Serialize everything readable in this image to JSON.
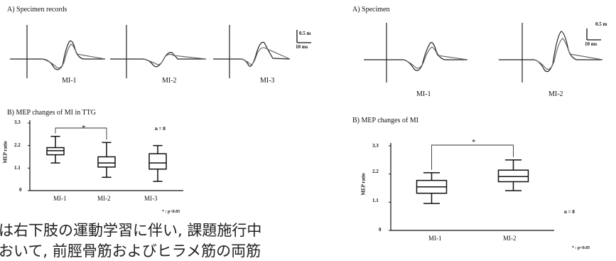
{
  "left_panel": {
    "title_a": "A) Specimen records",
    "title_b": "B) MEP changes of MI in TTG",
    "scale_amp": "0.5 m",
    "scale_time": "10 ms",
    "trace_labels": [
      "MI-1",
      "MI-2",
      "MI-3"
    ],
    "star": "*",
    "n_label": "n = 8",
    "p_label": "* : p<0.05"
  },
  "right_panel": {
    "title_a": "A) Specimen",
    "title_b": "B) MEP changes of MI",
    "scale_amp": "0.5 m",
    "scale_time": "10 ms",
    "trace_labels": [
      "MI-1",
      "MI-2"
    ],
    "star": "*",
    "n_label": "n = 8",
    "p_label": "* : p<0.05"
  },
  "japanese_text": {
    "line1": "は右下肢の運動学習に伴い, 課題施行中",
    "line2": "おいて, 前脛骨筋およびヒラメ筋の両筋"
  },
  "chart_data": [
    {
      "type": "box",
      "title": "MEP changes of MI in TTG",
      "ylabel": "MEP ratio",
      "ylim": [
        0,
        3.3
      ],
      "yticks": [
        "0",
        "1.1",
        "2.2",
        "3.3"
      ],
      "categories": [
        "MI-1",
        "MI-2",
        "MI-3"
      ],
      "boxes": [
        {
          "label": "MI-1",
          "min": 1.35,
          "q1": 1.75,
          "median": 1.95,
          "q3": 2.1,
          "max": 2.65
        },
        {
          "label": "MI-2",
          "min": 0.65,
          "q1": 1.15,
          "median": 1.35,
          "q3": 1.65,
          "max": 2.35
        },
        {
          "label": "MI-3",
          "min": 0.45,
          "q1": 1.05,
          "median": 1.35,
          "q3": 1.8,
          "max": 2.2
        }
      ],
      "significance": [
        {
          "from": "MI-1",
          "to": "MI-2",
          "label": "*"
        }
      ],
      "annotation": "n = 8"
    },
    {
      "type": "box",
      "title": "MEP changes of MI",
      "ylabel": "MEP ratio",
      "ylim": [
        0,
        3.3
      ],
      "yticks": [
        "0",
        "1.1",
        "2.2",
        "3.3"
      ],
      "categories": [
        "MI-1",
        "MI-2"
      ],
      "boxes": [
        {
          "label": "MI-1",
          "min": 1.05,
          "q1": 1.45,
          "median": 1.7,
          "q3": 1.95,
          "max": 2.25
        },
        {
          "label": "MI-2",
          "min": 1.55,
          "q1": 1.9,
          "median": 2.1,
          "q3": 2.35,
          "max": 2.75
        }
      ],
      "significance": [
        {
          "from": "MI-1",
          "to": "MI-2",
          "label": "*"
        }
      ],
      "annotation": "n = 8"
    }
  ]
}
